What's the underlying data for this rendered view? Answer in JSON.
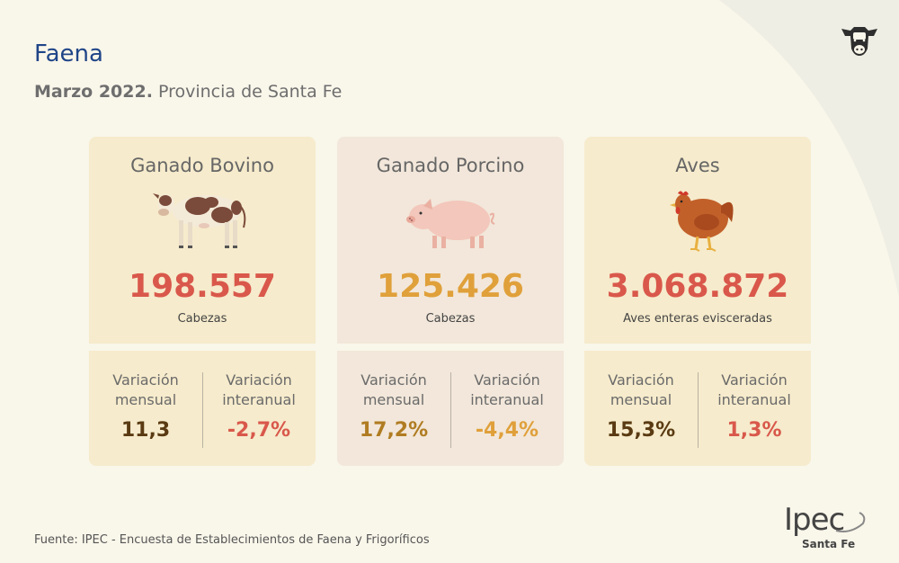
{
  "header": {
    "title": "Faena",
    "subtitle_bold": "Marzo 2022.",
    "subtitle_rest": " Provincia de Santa Fe"
  },
  "cards": [
    {
      "title": "Ganado Bovino",
      "icon": "cow-icon",
      "value": "198.557",
      "value_color": "#d9584b",
      "unit": "Cabezas",
      "var_left_label": "Variación mensual",
      "var_left_value": "11,3",
      "var_left_color": "#5a3a12",
      "var_right_label": "Variación interanual",
      "var_right_value": "-2,7%",
      "var_right_color": "#d9584b"
    },
    {
      "title": "Ganado Porcino",
      "icon": "pig-icon",
      "value": "125.426",
      "value_color": "#e0a03a",
      "unit": "Cabezas",
      "var_left_label": "Variación mensual",
      "var_left_value": "17,2%",
      "var_left_color": "#b07c22",
      "var_right_label": "Variación interanual",
      "var_right_value": "-4,4%",
      "var_right_color": "#e0a03a"
    },
    {
      "title": "Aves",
      "icon": "chicken-icon",
      "value": "3.068.872",
      "value_color": "#d9584b",
      "unit": "Aves enteras evisceradas",
      "var_left_label": "Variación mensual",
      "var_left_value": "15,3%",
      "var_left_color": "#5a3a12",
      "var_right_label": "Variación interanual",
      "var_right_value": "1,3%",
      "var_right_color": "#d9584b"
    }
  ],
  "footer": {
    "source": "Fuente: IPEC - Encuesta de Establecimientos de Faena y Frigoríficos"
  },
  "logo": {
    "main": "Ipec",
    "sub": "Santa Fe"
  }
}
